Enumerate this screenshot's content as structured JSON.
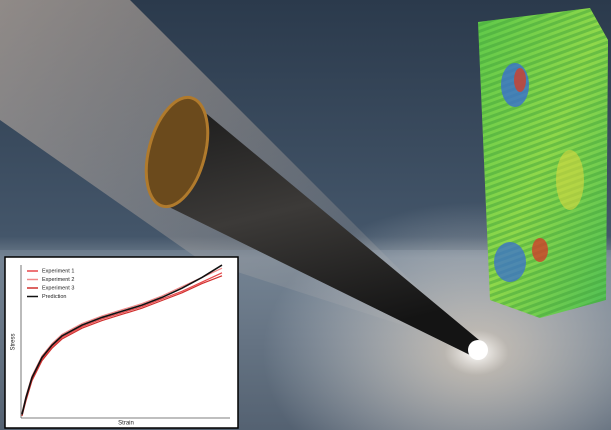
{
  "chart_data": {
    "type": "line",
    "x_label": "Strain",
    "y_label": "Stress",
    "x": [
      0,
      0.02,
      0.05,
      0.1,
      0.15,
      0.2,
      0.3,
      0.4,
      0.5,
      0.6,
      0.7,
      0.8,
      0.9,
      1.0
    ],
    "series": [
      {
        "name": "Experiment 1",
        "color": "#e8474a",
        "values": [
          0.01,
          0.11,
          0.24,
          0.37,
          0.45,
          0.51,
          0.58,
          0.63,
          0.67,
          0.71,
          0.76,
          0.81,
          0.87,
          0.93
        ]
      },
      {
        "name": "Experiment 2",
        "color": "#f08a8a",
        "values": [
          0.02,
          0.13,
          0.26,
          0.39,
          0.47,
          0.53,
          0.6,
          0.65,
          0.69,
          0.73,
          0.78,
          0.84,
          0.9,
          0.96
        ]
      },
      {
        "name": "Experiment 3",
        "color": "#d0302e",
        "values": [
          0.0,
          0.1,
          0.23,
          0.36,
          0.44,
          0.5,
          0.57,
          0.62,
          0.66,
          0.7,
          0.75,
          0.8,
          0.86,
          0.91
        ]
      },
      {
        "name": "Prediction",
        "color": "#111111",
        "values": [
          0.01,
          0.12,
          0.25,
          0.38,
          0.46,
          0.52,
          0.59,
          0.64,
          0.68,
          0.72,
          0.77,
          0.83,
          0.9,
          0.98
        ]
      }
    ],
    "xlim": [
      0,
      1
    ],
    "ylim": [
      0,
      1
    ],
    "legend": "upper left",
    "grid": false
  }
}
